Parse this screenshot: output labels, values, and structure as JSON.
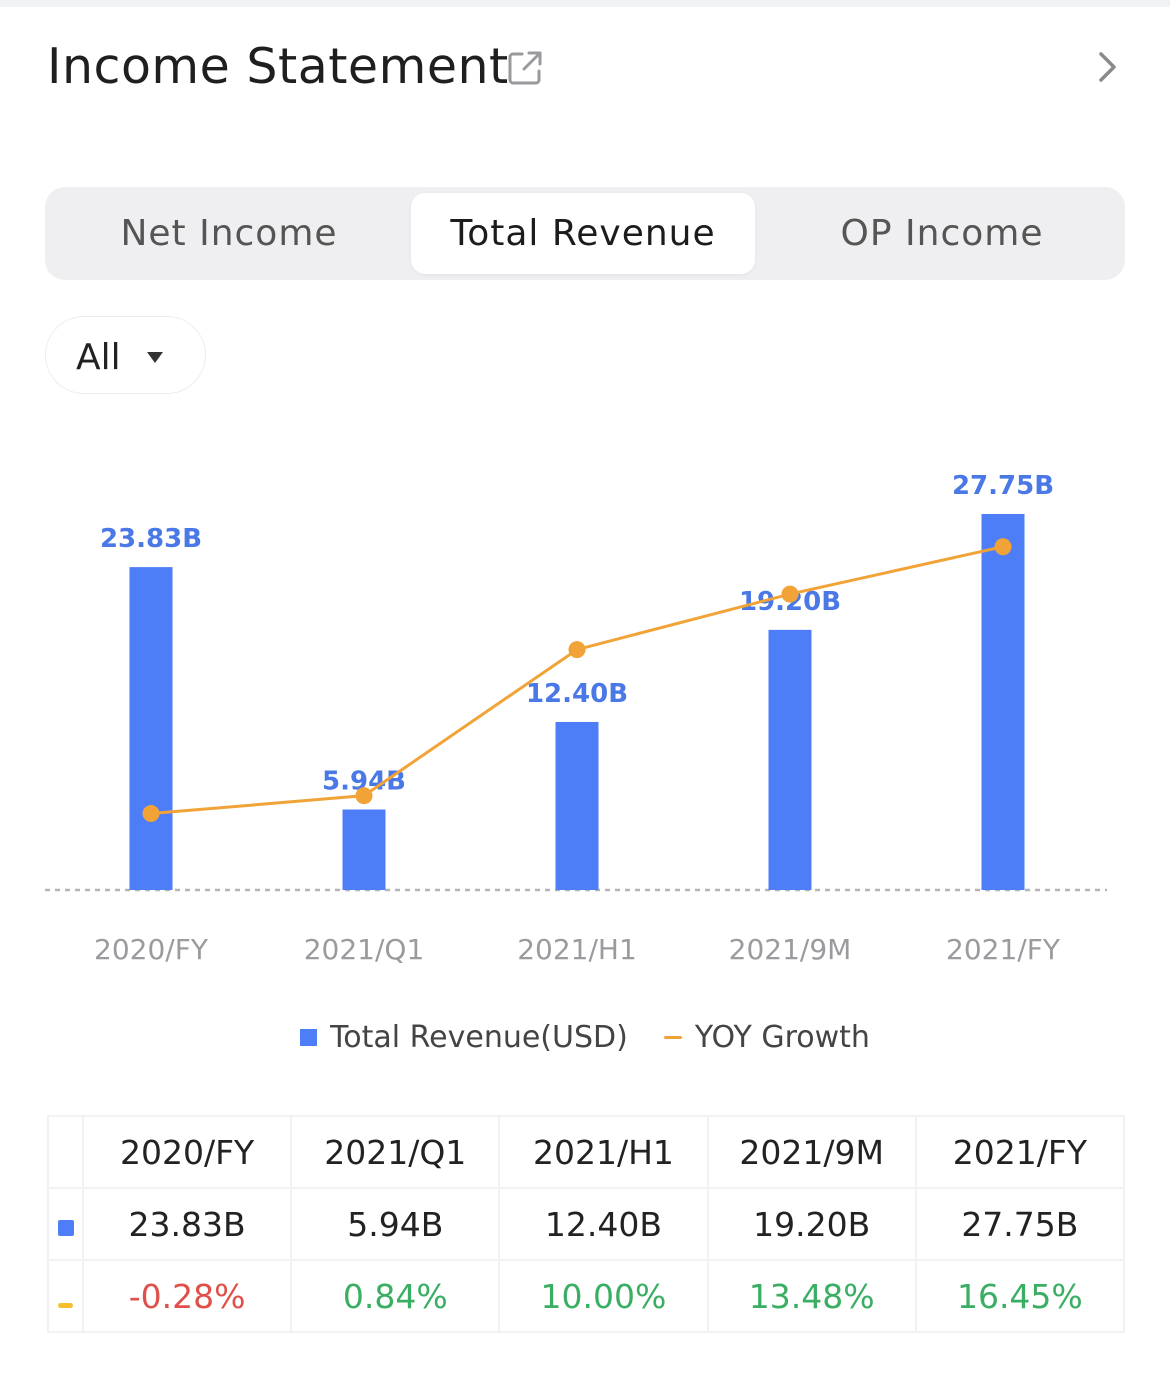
{
  "header": {
    "title": "Income Statement"
  },
  "tabs": [
    {
      "label": "Net Income",
      "active": false
    },
    {
      "label": "Total Revenue",
      "active": true
    },
    {
      "label": "OP Income",
      "active": false
    }
  ],
  "filter": {
    "label": "All"
  },
  "colors": {
    "bar": "#4e7ef7",
    "line": "#f1a338",
    "bar_label": "#4a78e6",
    "negative": "#e0504a",
    "positive": "#3aae62"
  },
  "chart_data": {
    "type": "bar",
    "categories": [
      "2020/FY",
      "2021/Q1",
      "2021/H1",
      "2021/9M",
      "2021/FY"
    ],
    "series": [
      {
        "name": "Total Revenue(USD)",
        "type": "bar",
        "values": [
          23.83,
          5.94,
          12.4,
          19.2,
          27.75
        ],
        "labels": [
          "23.83B",
          "5.94B",
          "12.40B",
          "19.20B",
          "27.75B"
        ]
      },
      {
        "name": "YOY Growth",
        "type": "line",
        "values": [
          -0.28,
          0.84,
          10.0,
          13.48,
          16.45
        ],
        "unit": "%"
      }
    ],
    "ylim": [
      0,
      27.75
    ],
    "growth_range": [
      -1.5,
      18.0
    ],
    "baseline": "dashed"
  },
  "legend": [
    {
      "label": "Total Revenue(USD)"
    },
    {
      "label": "YOY Growth"
    }
  ],
  "table": {
    "headers": [
      "2020/FY",
      "2021/Q1",
      "2021/H1",
      "2021/9M",
      "2021/FY"
    ],
    "revenue": [
      "23.83B",
      "5.94B",
      "12.40B",
      "19.20B",
      "27.75B"
    ],
    "growth": [
      "-0.28%",
      "0.84%",
      "10.00%",
      "13.48%",
      "16.45%"
    ]
  }
}
